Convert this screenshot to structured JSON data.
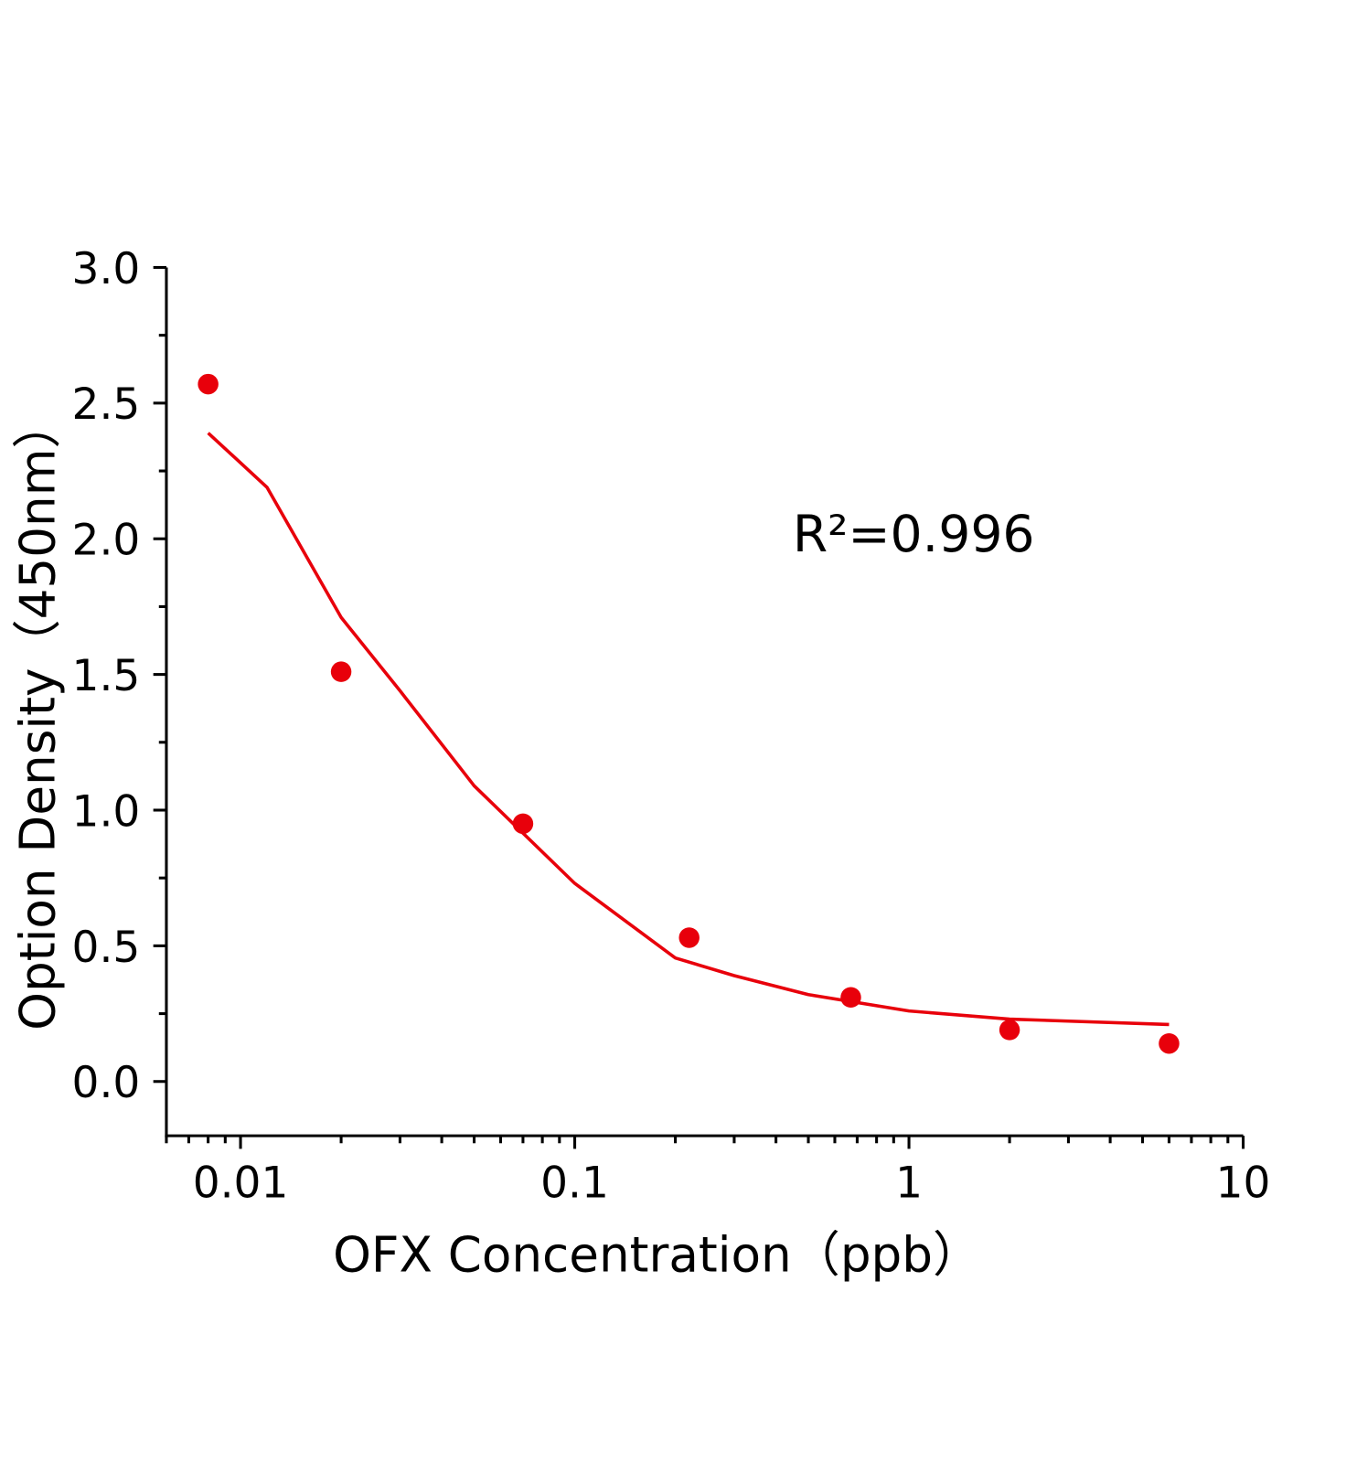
{
  "chart_data": {
    "type": "scatter",
    "x_label": "OFX Concentration（ppb）",
    "y_label": "Option Density（450nm）",
    "annotation": "R²=0.996",
    "xscale": "log",
    "xlim": [
      0.006,
      10
    ],
    "xticks": [
      0.01,
      0.1,
      1,
      10
    ],
    "ylim": [
      -0.2,
      3.0
    ],
    "yticks": [
      {
        "value": 0,
        "label": "0.0"
      },
      {
        "value": 0.5,
        "label": "0.5"
      },
      {
        "value": 1,
        "label": "1.0"
      },
      {
        "value": 1.5,
        "label": "1.5"
      },
      {
        "value": 2,
        "label": "2.0"
      },
      {
        "value": 2.5,
        "label": "2.5"
      },
      {
        "value": 3,
        "label": "3.0"
      }
    ],
    "series": [
      {
        "type": "scatter",
        "color": "#e8000b",
        "x": [
          0.008,
          0.02,
          0.07,
          0.22,
          0.67,
          2,
          6
        ],
        "values": [
          2.57,
          1.51,
          0.95,
          0.53,
          0.31,
          0.19,
          0.14
        ]
      },
      {
        "type": "line",
        "color": "#e8000b",
        "x": [
          0.008,
          0.012,
          0.02,
          0.03,
          0.05,
          0.1,
          0.2,
          0.3,
          0.5,
          1,
          2,
          6
        ],
        "values": [
          2.39,
          2.19,
          1.71,
          1.44,
          1.09,
          0.73,
          0.455,
          0.39,
          0.32,
          0.26,
          0.23,
          0.21
        ]
      }
    ]
  }
}
